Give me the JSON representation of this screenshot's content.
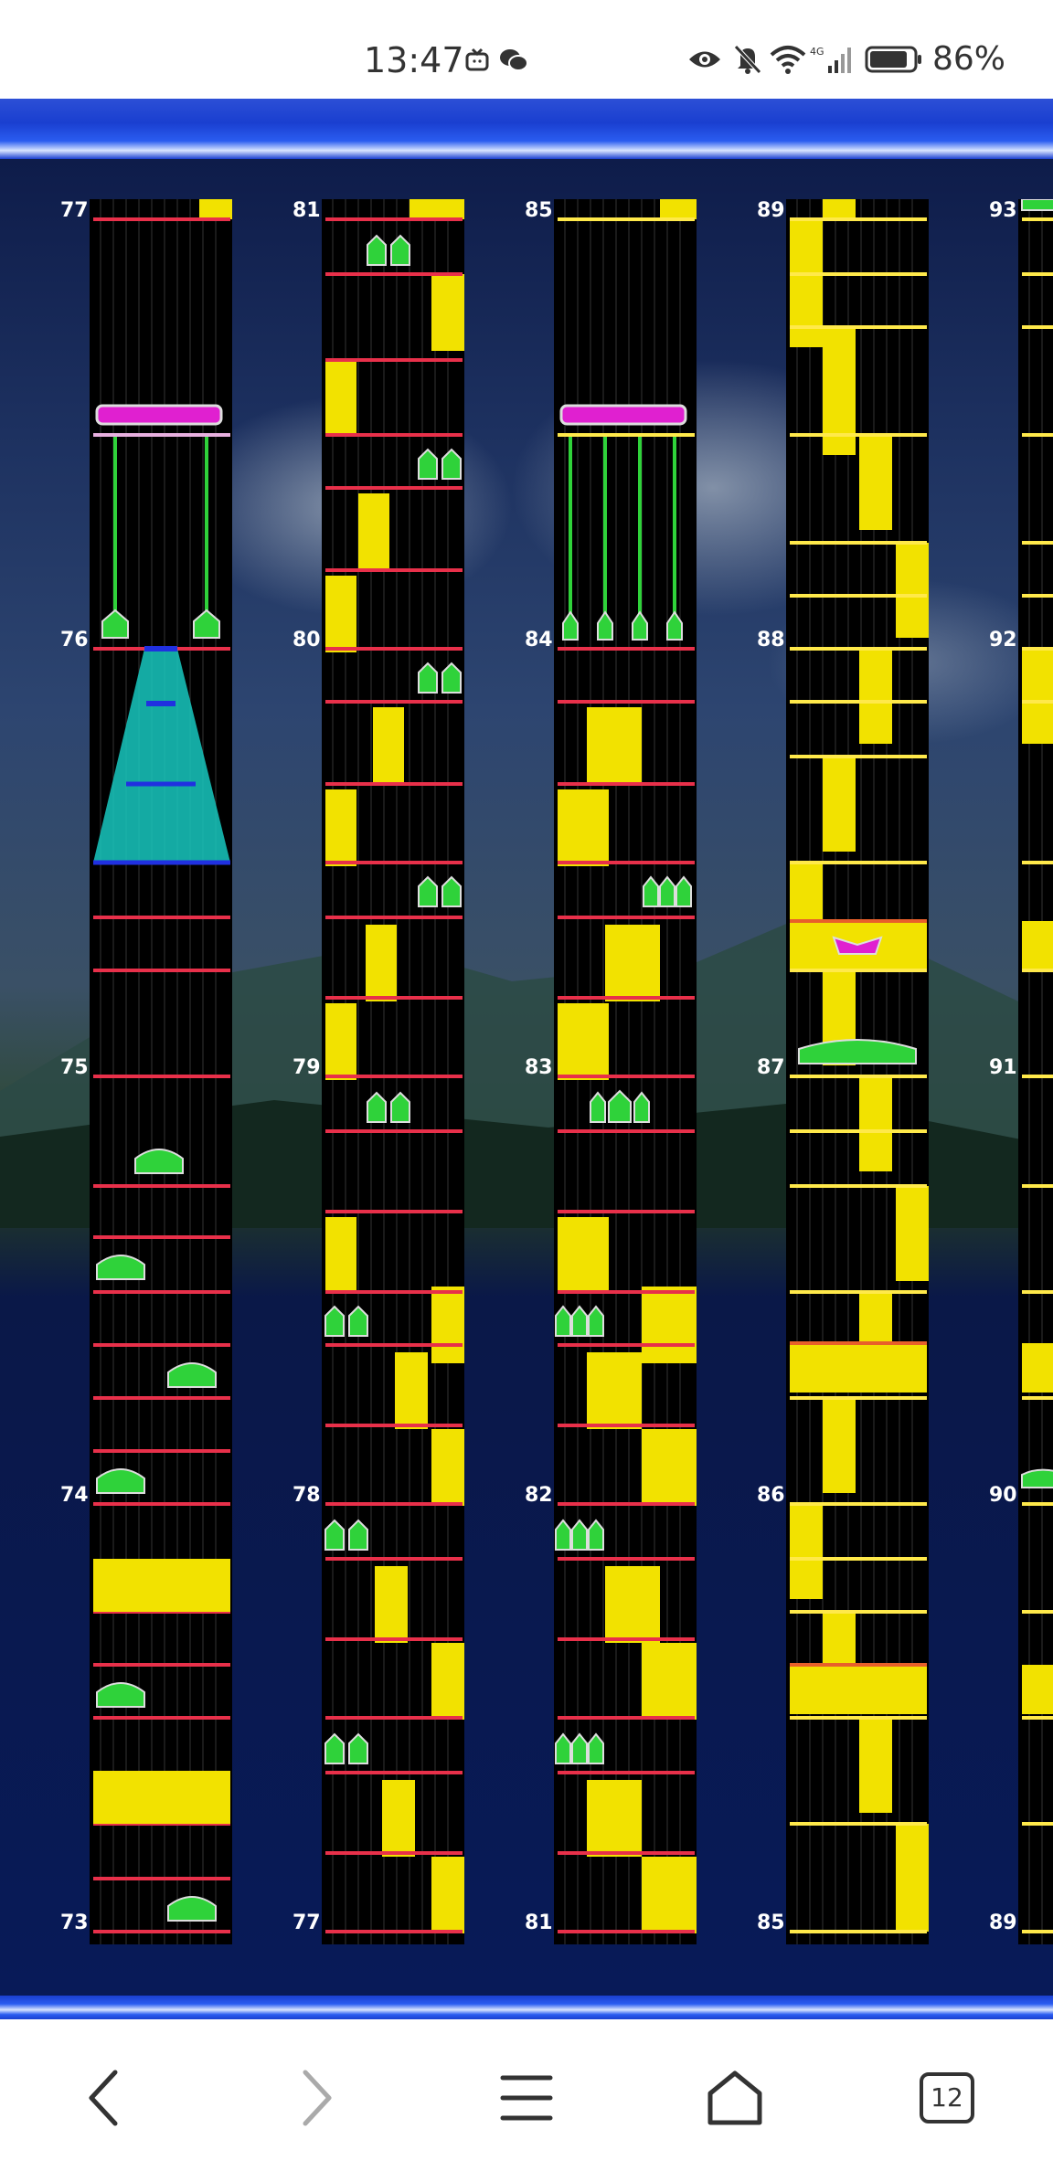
{
  "status_bar": {
    "time": "13:47",
    "icons": [
      "tv-icon",
      "wechat-icon",
      "eye-icon",
      "bell-muted-icon",
      "wifi-icon",
      "signal-icon",
      "battery-icon"
    ],
    "battery": "86%"
  },
  "game": {
    "columns": [
      {
        "id": "c1",
        "top_label": "77",
        "mid_label": "76",
        "low_label": "75",
        "lower_label": "74",
        "bottom_label": "73"
      },
      {
        "id": "c2",
        "top_label": "81",
        "mid_label": "80",
        "low_label": "79",
        "lower_label": "78",
        "bottom_label": "77"
      },
      {
        "id": "c3",
        "top_label": "85",
        "mid_label": "84",
        "low_label": "83",
        "lower_label": "82",
        "bottom_label": "81"
      },
      {
        "id": "c4",
        "top_label": "89",
        "mid_label": "88",
        "low_label": "87",
        "lower_label": "86",
        "bottom_label": "85"
      },
      {
        "id": "c5",
        "top_label": "93",
        "mid_label": "92",
        "low_label": "91",
        "lower_label": "90",
        "bottom_label": "89"
      }
    ],
    "colors": {
      "lane_bg": "#000000",
      "grid": "#3a3a3a",
      "red_line": "#e8304a",
      "yellow_line": "#ffe94a",
      "yellow_block": "#f2e200",
      "green_note": "#2fd23a",
      "magenta_note": "#e020d0",
      "cyan_fx": "#18c8c0"
    }
  },
  "nav": {
    "back_icon": "chevron-left-icon",
    "forward_icon": "chevron-right-icon",
    "menu_icon": "menu-icon",
    "home_icon": "home-icon",
    "tabs_count": "12"
  }
}
